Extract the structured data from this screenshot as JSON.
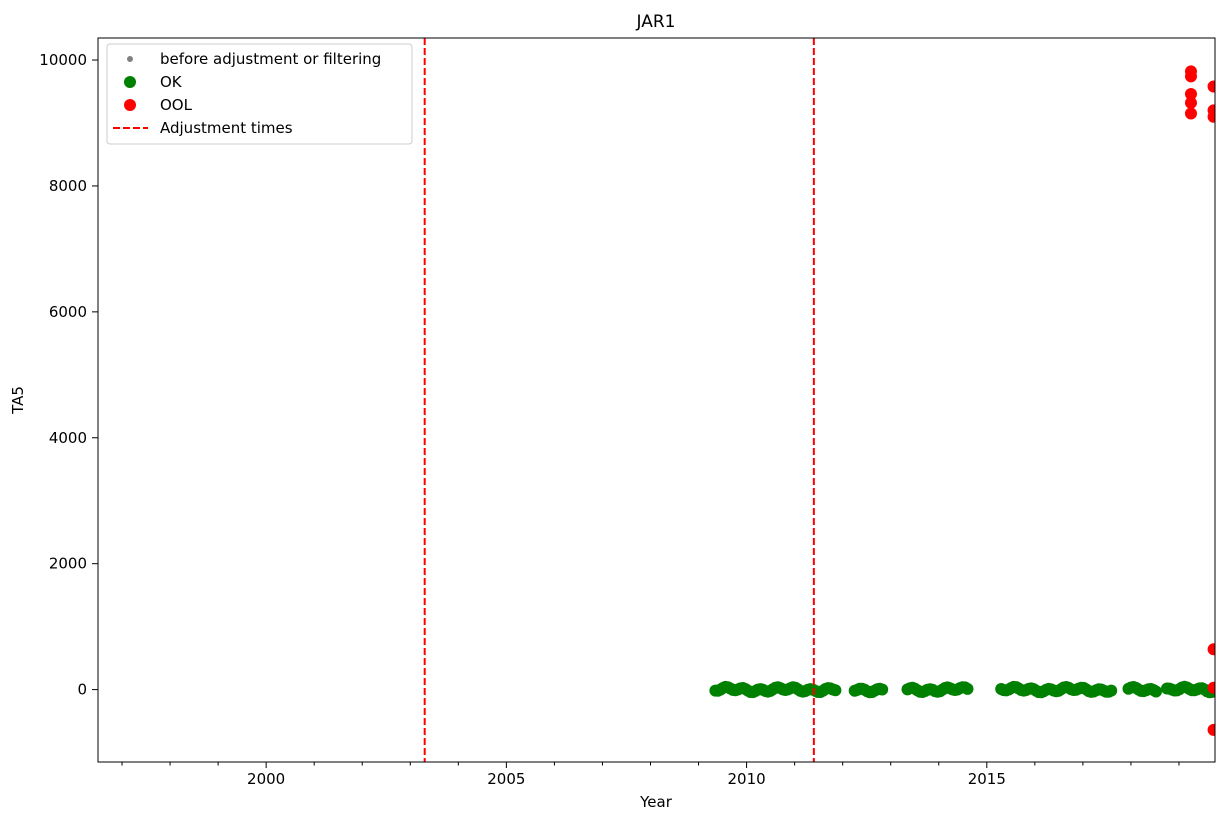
{
  "chart_data": {
    "type": "scatter",
    "title": "JAR1",
    "xlabel": "Year",
    "ylabel": "TA5",
    "xlim": [
      1996.5,
      2019.75
    ],
    "ylim": [
      -1150,
      10350
    ],
    "x_ticks": [
      2000,
      2005,
      2010,
      2015
    ],
    "x_tick_labels": [
      "2000",
      "2005",
      "2010",
      "2015"
    ],
    "y_ticks": [
      0,
      2000,
      4000,
      6000,
      8000,
      10000
    ],
    "y_tick_labels": [
      "0",
      "2000",
      "4000",
      "6000",
      "8000",
      "10000"
    ],
    "grid": false,
    "legend_position": "top-left",
    "legend": [
      {
        "label": "before adjustment or filtering",
        "marker": "small-dot",
        "color": "#808080"
      },
      {
        "label": "OK",
        "marker": "dot",
        "color": "#008000"
      },
      {
        "label": "OOL",
        "marker": "dot",
        "color": "#ff0000"
      },
      {
        "label": "Adjustment times",
        "marker": "dashed-line",
        "color": "#ff0000"
      }
    ],
    "adjustment_times": [
      2003.3,
      2011.4
    ],
    "ok_segments": [
      {
        "x_start": 2009.35,
        "x_end": 2011.85,
        "y": 0
      },
      {
        "x_start": 2012.25,
        "x_end": 2012.85,
        "y": 0
      },
      {
        "x_start": 2013.35,
        "x_end": 2014.65,
        "y": 0
      },
      {
        "x_start": 2015.3,
        "x_end": 2017.6,
        "y": 0
      },
      {
        "x_start": 2017.95,
        "x_end": 2018.55,
        "y": 0
      },
      {
        "x_start": 2018.75,
        "x_end": 2019.75,
        "y": 0
      }
    ],
    "series": [
      {
        "name": "OOL",
        "color": "#ff0000",
        "points": [
          {
            "x": 2019.25,
            "y": 9820
          },
          {
            "x": 2019.25,
            "y": 9740
          },
          {
            "x": 2019.25,
            "y": 9460
          },
          {
            "x": 2019.25,
            "y": 9320
          },
          {
            "x": 2019.25,
            "y": 9150
          },
          {
            "x": 2019.72,
            "y": 9580
          },
          {
            "x": 2019.72,
            "y": 9200
          },
          {
            "x": 2019.72,
            "y": 9100
          },
          {
            "x": 2019.72,
            "y": 640
          },
          {
            "x": 2019.72,
            "y": 30
          },
          {
            "x": 2019.72,
            "y": -640
          }
        ]
      }
    ]
  }
}
